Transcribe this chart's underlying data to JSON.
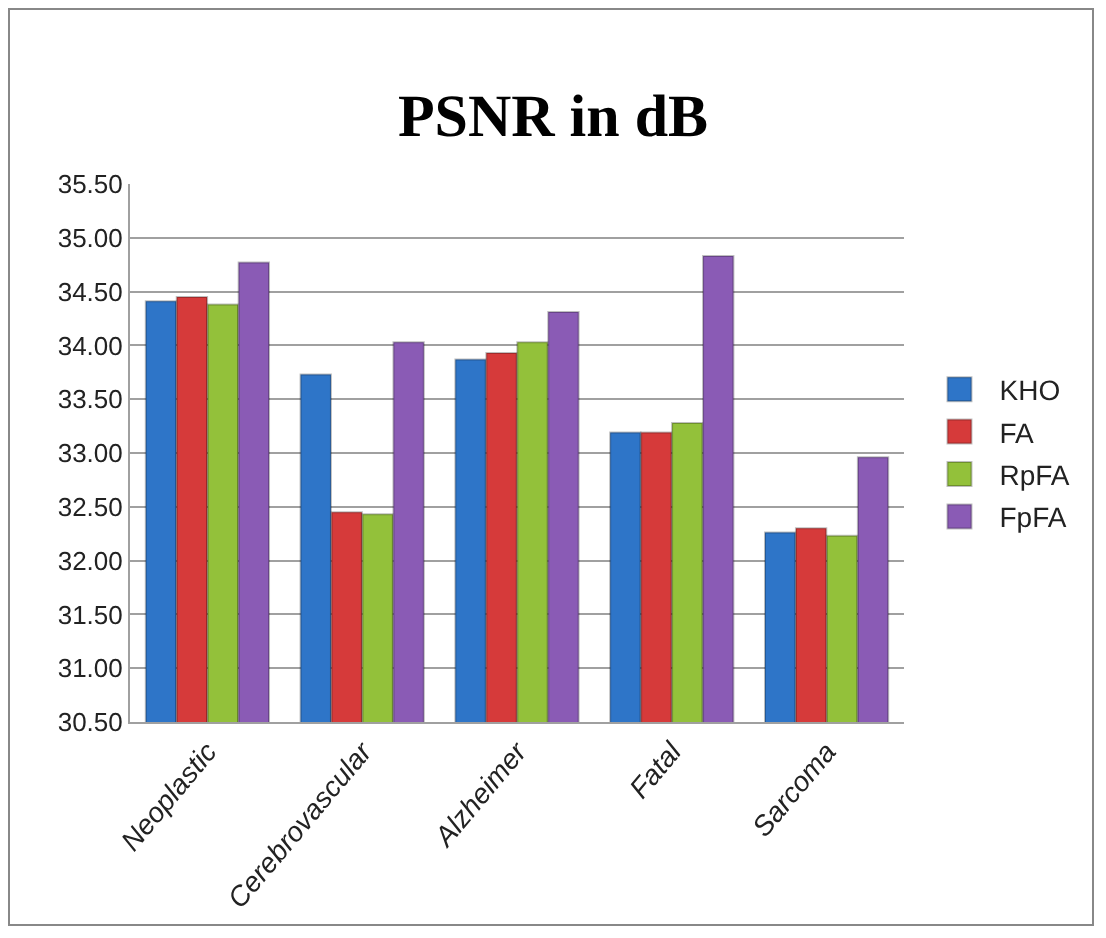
{
  "chart_data": {
    "type": "bar",
    "title": "PSNR in dB",
    "categories": [
      "Neoplastic",
      "Cerebrovascular",
      "Alzheimer",
      "Fatal",
      "Sarcoma"
    ],
    "series": [
      {
        "name": "KHO",
        "color": "#2e75c8",
        "values": [
          34.41,
          33.73,
          33.87,
          33.19,
          32.26
        ]
      },
      {
        "name": "FA",
        "color": "#d63a3a",
        "values": [
          34.45,
          32.45,
          33.93,
          33.19,
          32.3
        ]
      },
      {
        "name": "RpFA",
        "color": "#93c13a",
        "values": [
          34.38,
          32.43,
          34.03,
          33.28,
          32.23
        ]
      },
      {
        "name": "FpFA",
        "color": "#8a5bb5",
        "values": [
          34.77,
          34.03,
          34.31,
          34.83,
          32.96
        ]
      }
    ],
    "ylim": [
      30.5,
      35.5
    ],
    "yticks": [
      {
        "value": 30.5,
        "label": "30.50"
      },
      {
        "value": 31,
        "label": "31.00"
      },
      {
        "value": 31.5,
        "label": "31.50"
      },
      {
        "value": 32,
        "label": "32.00"
      },
      {
        "value": 32.5,
        "label": "32.50"
      },
      {
        "value": 33,
        "label": "33.00"
      },
      {
        "value": 33.5,
        "label": "33.50"
      },
      {
        "value": 34,
        "label": "34.00"
      },
      {
        "value": 34.5,
        "label": "34.50"
      },
      {
        "value": 35,
        "label": "35.00"
      },
      {
        "value": 35.5,
        "label": "35.50"
      }
    ],
    "grid": "y",
    "legend": "right"
  }
}
